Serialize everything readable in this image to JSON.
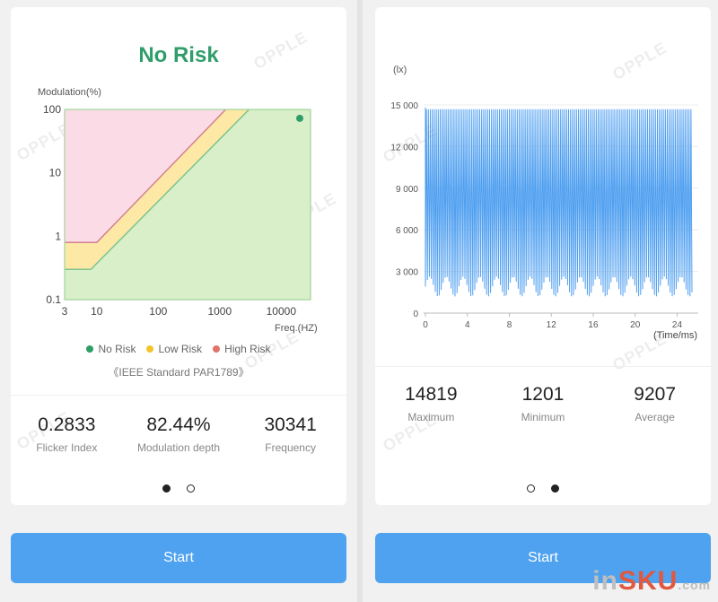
{
  "left": {
    "title": "No Risk",
    "watermark": "OPPLE",
    "chart_data": {
      "type": "area",
      "ylabel": "Modulation(%)",
      "xlabel": "Freq.(HZ)",
      "x_scale": "log",
      "y_scale": "log",
      "x_ticks": [
        "3",
        "10",
        "100",
        "1000",
        "10000"
      ],
      "y_ticks": [
        "100",
        "10",
        "1",
        "0.1"
      ],
      "xlim": [
        3,
        30000
      ],
      "ylim": [
        0.1,
        100
      ],
      "regions": [
        {
          "name": "No Risk",
          "color": "#d8efc9"
        },
        {
          "name": "Low Risk",
          "color": "#fde8a6"
        },
        {
          "name": "High Risk",
          "color": "#fbdce6"
        }
      ],
      "low_risk_boundary": [
        {
          "x": 3,
          "y": 0.3
        },
        {
          "x": 8,
          "y": 0.3
        },
        {
          "x": 3000,
          "y": 100
        }
      ],
      "high_risk_boundary": [
        {
          "x": 3,
          "y": 0.8
        },
        {
          "x": 10,
          "y": 0.8
        },
        {
          "x": 1250,
          "y": 100
        }
      ],
      "measured_point": {
        "x": 30341,
        "y": 82.44
      }
    },
    "legend": [
      {
        "label": "No Risk",
        "color": "#2e9e68"
      },
      {
        "label": "Low Risk",
        "color": "#f3c42a"
      },
      {
        "label": "High Risk",
        "color": "#e0736a"
      }
    ],
    "standard": "《IEEE Standard PAR1789》",
    "stats": [
      {
        "value": "0.2833",
        "label": "Flicker Index"
      },
      {
        "value": "82.44%",
        "label": "Modulation depth"
      },
      {
        "value": "30341",
        "label": "Frequency"
      }
    ],
    "start_label": "Start"
  },
  "right": {
    "watermark": "OPPLE",
    "chart_data": {
      "type": "line",
      "ylabel": "(lx)",
      "xlabel": "(Time/ms)",
      "y_ticks": [
        "15 000",
        "12 000",
        "9 000",
        "6 000",
        "3 000",
        "0"
      ],
      "x_ticks": [
        "0",
        "4",
        "8",
        "12",
        "16",
        "20",
        "24"
      ],
      "xlim": [
        0,
        25.5
      ],
      "ylim": [
        0,
        15000
      ],
      "series": [
        {
          "color": "#4f9ff0",
          "max": 14819,
          "min": 1201,
          "period_ms": 0.033
        }
      ]
    },
    "stats": [
      {
        "value": "14819",
        "label": "Maximum"
      },
      {
        "value": "1201",
        "label": "Minimum"
      },
      {
        "value": "9207",
        "label": "Average"
      }
    ],
    "start_label": "Start"
  },
  "brand": {
    "prefix": "in",
    "accent": "SKU",
    "suffix": ".com"
  }
}
